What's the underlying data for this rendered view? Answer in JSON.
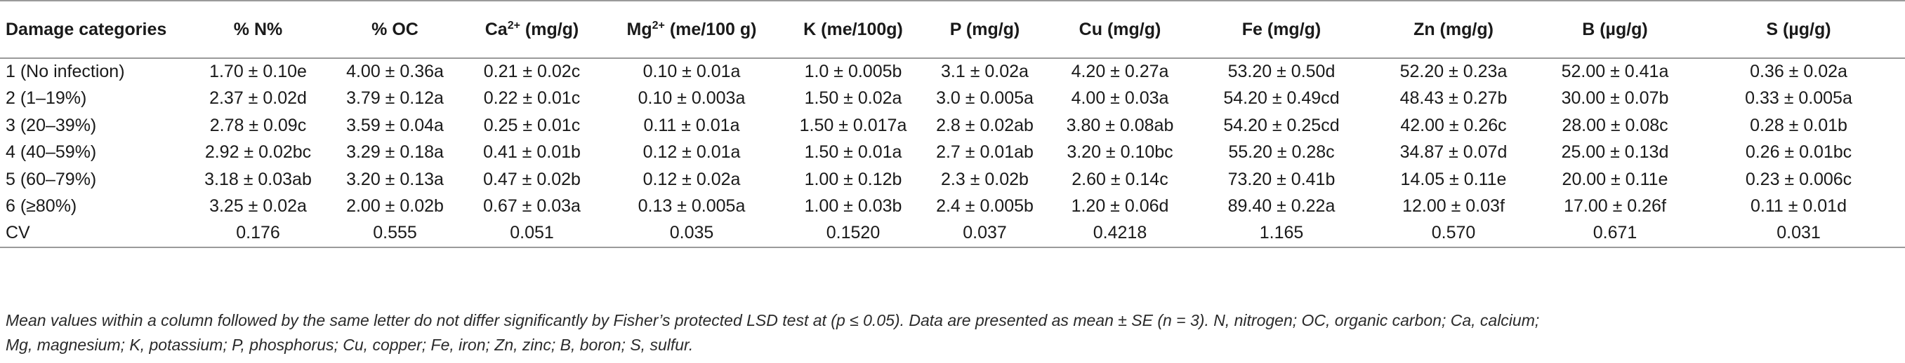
{
  "table": {
    "headers": [
      {
        "text": "Damage categories"
      },
      {
        "text": "% N%"
      },
      {
        "text": "% OC"
      },
      {
        "pre": "Ca",
        "sup": "2+",
        "post": " (mg/g)"
      },
      {
        "pre": "Mg",
        "sup": "2+",
        "post": " (me/100 g)"
      },
      {
        "text": "K (me/100g)"
      },
      {
        "text": "P (mg/g)"
      },
      {
        "text": "Cu (mg/g)"
      },
      {
        "text": "Fe (mg/g)"
      },
      {
        "text": "Zn (mg/g)"
      },
      {
        "text": "B (µg/g)"
      },
      {
        "text": "S (µg/g)"
      }
    ],
    "rows": [
      [
        "1 (No infection)",
        "1.70 ± 0.10e",
        "4.00 ± 0.36a",
        "0.21 ± 0.02c",
        "0.10 ± 0.01a",
        "1.0 ± 0.005b",
        "3.1 ± 0.02a",
        "4.20 ± 0.27a",
        "53.20 ± 0.50d",
        "52.20 ± 0.23a",
        "52.00 ± 0.41a",
        "0.36 ± 0.02a"
      ],
      [
        "2 (1–19%)",
        "2.37 ± 0.02d",
        "3.79 ± 0.12a",
        "0.22 ± 0.01c",
        "0.10 ± 0.003a",
        "1.50 ± 0.02a",
        "3.0 ± 0.005a",
        "4.00 ± 0.03a",
        "54.20 ± 0.49cd",
        "48.43 ± 0.27b",
        "30.00 ± 0.07b",
        "0.33 ± 0.005a"
      ],
      [
        "3 (20–39%)",
        "2.78 ± 0.09c",
        "3.59 ± 0.04a",
        "0.25 ± 0.01c",
        "0.11 ± 0.01a",
        "1.50 ± 0.017a",
        "2.8 ± 0.02ab",
        "3.80 ± 0.08ab",
        "54.20 ± 0.25cd",
        "42.00 ± 0.26c",
        "28.00 ± 0.08c",
        "0.28 ± 0.01b"
      ],
      [
        "4 (40–59%)",
        "2.92 ± 0.02bc",
        "3.29 ± 0.18a",
        "0.41 ± 0.01b",
        "0.12 ± 0.01a",
        "1.50 ± 0.01a",
        "2.7 ± 0.01ab",
        "3.20 ± 0.10bc",
        "55.20 ± 0.28c",
        "34.87 ± 0.07d",
        "25.00 ± 0.13d",
        "0.26 ± 0.01bc"
      ],
      [
        "5 (60–79%)",
        "3.18 ± 0.03ab",
        "3.20 ± 0.13a",
        "0.47 ± 0.02b",
        "0.12 ± 0.02a",
        "1.00 ± 0.12b",
        "2.3 ± 0.02b",
        "2.60 ± 0.14c",
        "73.20 ± 0.41b",
        "14.05 ± 0.11e",
        "20.00 ± 0.11e",
        "0.23 ± 0.006c"
      ],
      [
        "6 (≥80%)",
        "3.25 ± 0.02a",
        "2.00 ± 0.02b",
        "0.67 ± 0.03a",
        "0.13 ± 0.005a",
        "1.00 ± 0.03b",
        "2.4 ± 0.005b",
        "1.20 ± 0.06d",
        "89.40 ± 0.22a",
        "12.00 ± 0.03f",
        "17.00 ± 0.26f",
        "0.11 ± 0.01d"
      ],
      [
        "CV",
        "0.176",
        "0.555",
        "0.051",
        "0.035",
        "0.1520",
        "0.037",
        "0.4218",
        "1.165",
        "0.570",
        "0.671",
        "0.031"
      ]
    ]
  },
  "footnote": {
    "line1": "Mean values within a column followed by the same letter do not differ significantly by Fisher’s protected LSD test at (p ≤ 0.05). Data are presented as mean ± SE (n = 3). N, nitrogen; OC, organic carbon; Ca, calcium;",
    "line2": "Mg, magnesium; K, potassium; P, phosphorus; Cu, copper; Fe, iron; Zn, zinc; B, boron; S, sulfur."
  }
}
